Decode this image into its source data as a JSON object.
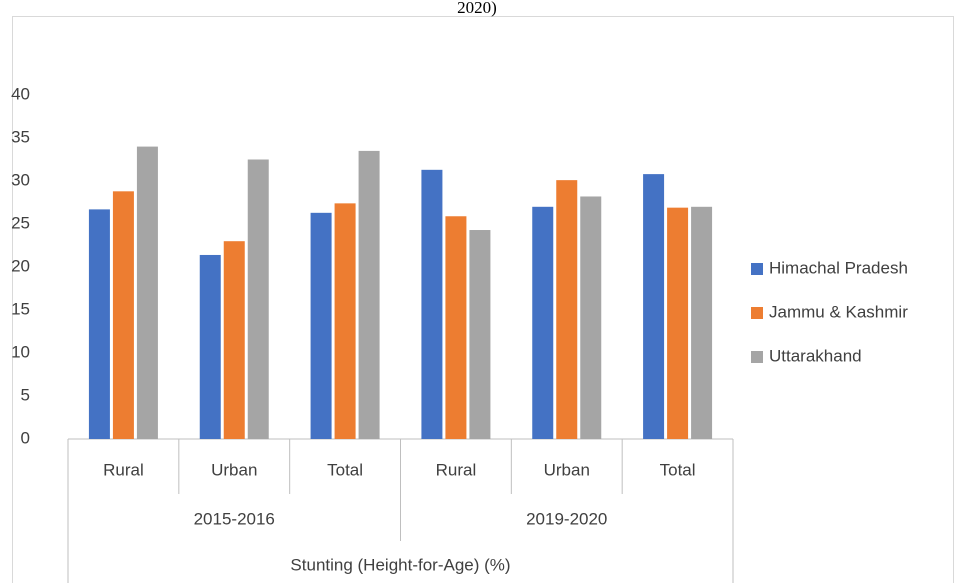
{
  "chart_data": {
    "type": "bar",
    "title": "2020)",
    "categories": [
      "Rural",
      "Urban",
      "Total",
      "Rural",
      "Urban",
      "Total"
    ],
    "groups": [
      "2015-2016",
      "2019-2020"
    ],
    "supergroup": "Stunting (Height-for-Age) (%)",
    "series": [
      {
        "name": "Himachal Pradesh",
        "color": "#4472c4",
        "values": [
          26.7,
          21.4,
          26.3,
          31.3,
          27.0,
          30.8
        ]
      },
      {
        "name": "Jammu & Kashmir",
        "color": "#ed7d31",
        "values": [
          28.8,
          23.0,
          27.4,
          25.9,
          30.1,
          26.9
        ]
      },
      {
        "name": "Uttarakhand",
        "color": "#a5a5a5",
        "values": [
          34.0,
          32.5,
          33.5,
          24.3,
          28.2,
          27.0
        ]
      }
    ],
    "ylim": [
      0,
      40
    ],
    "yticks": [
      0,
      5,
      10,
      15,
      20,
      25,
      30,
      35,
      40
    ],
    "grid": false,
    "legend": "right"
  }
}
